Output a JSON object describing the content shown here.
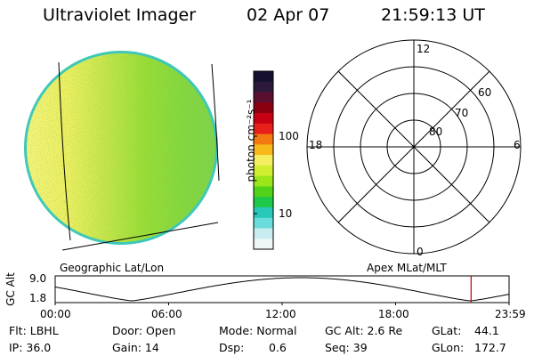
{
  "header": {
    "instrument": "Ultraviolet Imager",
    "date": "02 Apr 07",
    "time": "21:59:13 UT"
  },
  "colorbar": {
    "unit_label": "photon cm⁻²s⁻¹",
    "ticks": [
      "100",
      "10"
    ],
    "colors": [
      "#151030",
      "#2d1a3a",
      "#5a0f2e",
      "#8b0010",
      "#c80014",
      "#e8201a",
      "#f27a10",
      "#f7b81a",
      "#f4ee60",
      "#d2ee30",
      "#9ae61a",
      "#52d21a",
      "#20c84a",
      "#28c8b8",
      "#6adcdc",
      "#c8ecf0",
      "#eef6f6"
    ]
  },
  "geo_panel": {
    "label": "Geographic Lat/Lon",
    "dominant_colors": [
      "#f2f06a",
      "#c8e84a",
      "#9ade2a",
      "#7ada3a",
      "#3cc8b4"
    ]
  },
  "polar_panel": {
    "label": "Apex MLat/MLT",
    "mlt_labels": [
      "12",
      "18",
      "6",
      "0"
    ],
    "lat_labels": [
      "60",
      "70",
      "80"
    ]
  },
  "orbit_plot": {
    "ylabel": "GC Alt",
    "yticks": [
      "9.0",
      "1.8"
    ],
    "xticks": [
      "00:00",
      "06:00",
      "12:00",
      "18:00",
      "23:59"
    ],
    "current_time_hours": 21.99,
    "marker_color": "#c00000"
  },
  "info": {
    "filter": "Flt: LBHL",
    "ip": "IP: 36.0",
    "door": "Door: Open",
    "gain": "Gain: 14",
    "mode": "Mode: Normal",
    "dsp_label": "Dsp:",
    "dsp_value": "0.6",
    "gc_alt": "GC Alt: 2.6 Re",
    "seq": "Seq: 39",
    "glat_label": "GLat:",
    "glat_value": "44.1",
    "glon_label": "GLon:",
    "glon_value": "172.7"
  }
}
